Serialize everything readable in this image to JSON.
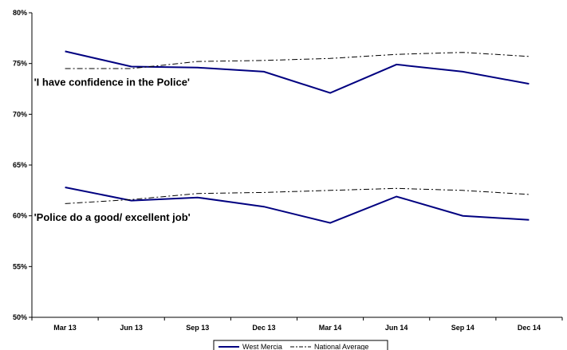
{
  "chart_data": {
    "type": "line",
    "categories": [
      "Mar 13",
      "Jun 13",
      "Sep 13",
      "Dec 13",
      "Mar 14",
      "Jun 14",
      "Sep 14",
      "Dec 14"
    ],
    "ylim": [
      50,
      80
    ],
    "yticks": [
      "50%",
      "55%",
      "60%",
      "65%",
      "70%",
      "75%",
      "80%"
    ],
    "grid": false,
    "legend_position": "bottom",
    "series": [
      {
        "name": "West Mercia",
        "group": "confidence",
        "style": "solid",
        "color": "#000080",
        "values": [
          76.2,
          74.7,
          74.6,
          74.2,
          72.1,
          74.9,
          74.2,
          73.0
        ]
      },
      {
        "name": "National Average",
        "group": "confidence",
        "style": "dashdot",
        "color": "#000000",
        "values": [
          74.5,
          74.5,
          75.2,
          75.3,
          75.5,
          75.9,
          76.1,
          75.7
        ]
      },
      {
        "name": "West Mercia",
        "group": "job",
        "style": "solid",
        "color": "#000080",
        "values": [
          62.8,
          61.5,
          61.8,
          60.9,
          59.3,
          61.9,
          60.0,
          59.6
        ]
      },
      {
        "name": "National Average",
        "group": "job",
        "style": "dashdot",
        "color": "#000000",
        "values": [
          61.2,
          61.6,
          62.2,
          62.3,
          62.5,
          62.7,
          62.5,
          62.1
        ]
      }
    ],
    "annotations": [
      {
        "text": "'I have confidence in the Police'",
        "x": "Mar 13",
        "y": 72.8
      },
      {
        "text": "'Police do a good/ excellent job'",
        "x": "Mar 13",
        "y": 59.5
      }
    ],
    "legend": [
      {
        "label": "West Mercia",
        "style": "solid",
        "color": "#000080"
      },
      {
        "label": "National Average",
        "style": "dashdot",
        "color": "#000000"
      }
    ]
  }
}
